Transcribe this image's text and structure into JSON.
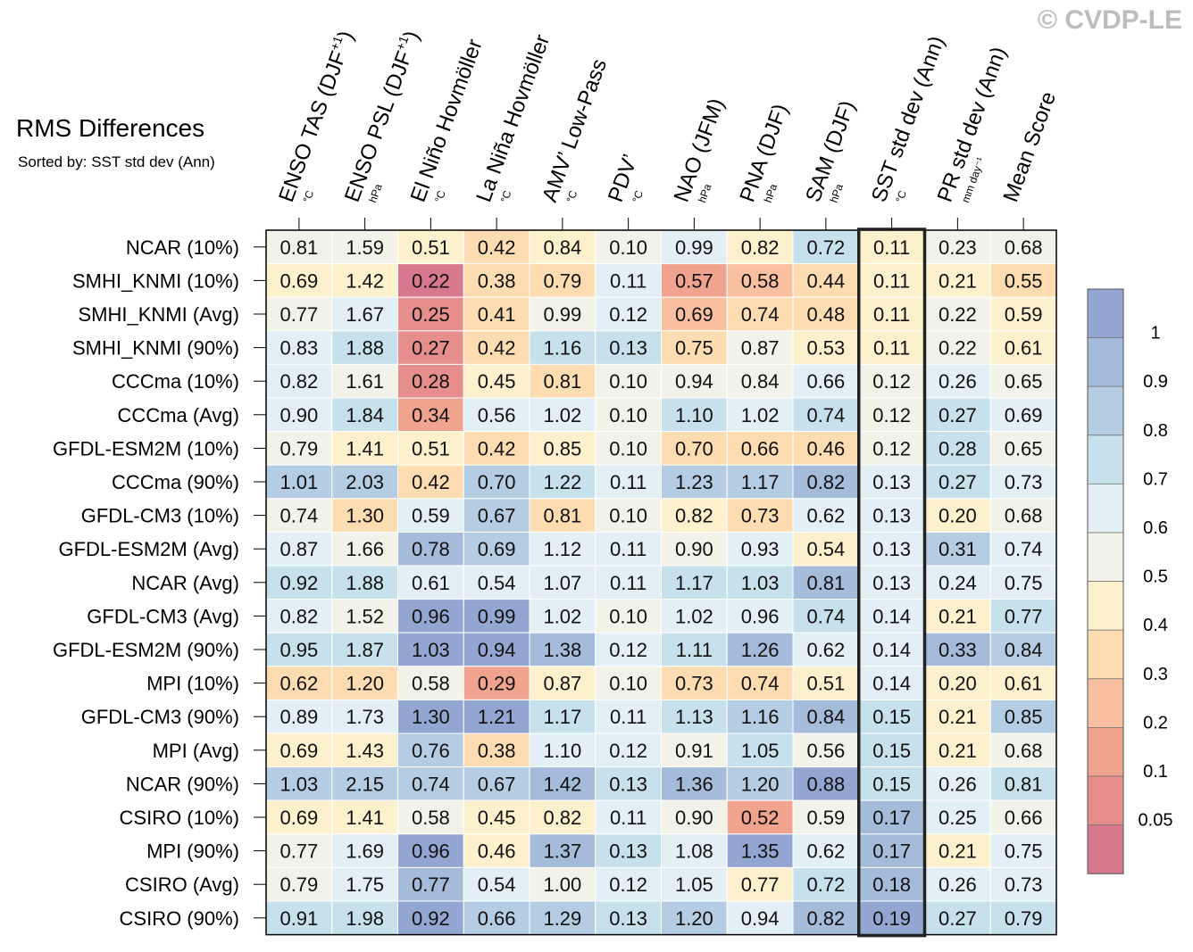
{
  "title": "RMS Differences",
  "subtitle": "Sorted by: SST std dev (Ann)",
  "copyright": "© CVDP-LE",
  "chart_data": {
    "type": "heatmap",
    "columns": [
      {
        "label": "ENSO TAS (DJF",
        "sup": "+1",
        "suffix": ")",
        "unit": "°C"
      },
      {
        "label": "ENSO PSL (DJF",
        "sup": "+1",
        "suffix": ")",
        "unit": "hPa"
      },
      {
        "label": "El Niño Hovmöller",
        "sup": "",
        "suffix": "",
        "unit": "°C"
      },
      {
        "label": "La Niña Hovmöller",
        "sup": "",
        "suffix": "",
        "unit": "°C"
      },
      {
        "label": "AMV’ Low-Pass",
        "sup": "",
        "suffix": "",
        "unit": "°C"
      },
      {
        "label": "PDV’",
        "sup": "",
        "suffix": "",
        "unit": "°C"
      },
      {
        "label": "NAO (JFM)",
        "sup": "",
        "suffix": "",
        "unit": "hPa"
      },
      {
        "label": "PNA (DJF)",
        "sup": "",
        "suffix": "",
        "unit": "hPa"
      },
      {
        "label": "SAM (DJF)",
        "sup": "",
        "suffix": "",
        "unit": "hPa"
      },
      {
        "label": "SST std dev (Ann)",
        "sup": "",
        "suffix": "",
        "unit": "°C"
      },
      {
        "label": "PR std dev (Ann)",
        "sup": "",
        "suffix": "",
        "unit": "mm day⁻¹"
      },
      {
        "label": "Mean Score",
        "sup": "",
        "suffix": "",
        "unit": ""
      }
    ],
    "rows": [
      {
        "name": "NCAR (10%)",
        "values": [
          0.81,
          1.59,
          0.51,
          0.42,
          0.84,
          0.1,
          0.99,
          0.82,
          0.72,
          0.11,
          0.23,
          0.68
        ]
      },
      {
        "name": "SMHI_KNMI (10%)",
        "values": [
          0.69,
          1.42,
          0.22,
          0.38,
          0.79,
          0.11,
          0.57,
          0.58,
          0.44,
          0.11,
          0.21,
          0.55
        ]
      },
      {
        "name": "SMHI_KNMI (Avg)",
        "values": [
          0.77,
          1.67,
          0.25,
          0.41,
          0.99,
          0.12,
          0.69,
          0.74,
          0.48,
          0.11,
          0.22,
          0.59
        ]
      },
      {
        "name": "SMHI_KNMI (90%)",
        "values": [
          0.83,
          1.88,
          0.27,
          0.42,
          1.16,
          0.13,
          0.75,
          0.87,
          0.53,
          0.11,
          0.22,
          0.61
        ]
      },
      {
        "name": "CCCma (10%)",
        "values": [
          0.82,
          1.61,
          0.28,
          0.45,
          0.81,
          0.1,
          0.94,
          0.84,
          0.66,
          0.12,
          0.26,
          0.65
        ]
      },
      {
        "name": "CCCma (Avg)",
        "values": [
          0.9,
          1.84,
          0.34,
          0.56,
          1.02,
          0.1,
          1.1,
          1.02,
          0.74,
          0.12,
          0.27,
          0.69
        ]
      },
      {
        "name": "GFDL-ESM2M (10%)",
        "values": [
          0.79,
          1.41,
          0.51,
          0.42,
          0.85,
          0.1,
          0.7,
          0.66,
          0.46,
          0.12,
          0.28,
          0.65
        ]
      },
      {
        "name": "CCCma (90%)",
        "values": [
          1.01,
          2.03,
          0.42,
          0.7,
          1.22,
          0.11,
          1.23,
          1.17,
          0.82,
          0.13,
          0.27,
          0.73
        ]
      },
      {
        "name": "GFDL-CM3 (10%)",
        "values": [
          0.74,
          1.3,
          0.59,
          0.67,
          0.81,
          0.1,
          0.82,
          0.73,
          0.62,
          0.13,
          0.2,
          0.68
        ]
      },
      {
        "name": "GFDL-ESM2M (Avg)",
        "values": [
          0.87,
          1.66,
          0.78,
          0.69,
          1.12,
          0.11,
          0.9,
          0.93,
          0.54,
          0.13,
          0.31,
          0.74
        ]
      },
      {
        "name": "NCAR (Avg)",
        "values": [
          0.92,
          1.88,
          0.61,
          0.54,
          1.07,
          0.11,
          1.17,
          1.03,
          0.81,
          0.13,
          0.24,
          0.75
        ]
      },
      {
        "name": "GFDL-CM3 (Avg)",
        "values": [
          0.82,
          1.52,
          0.96,
          0.99,
          1.02,
          0.1,
          1.02,
          0.96,
          0.74,
          0.14,
          0.21,
          0.77
        ]
      },
      {
        "name": "GFDL-ESM2M (90%)",
        "values": [
          0.95,
          1.87,
          1.03,
          0.94,
          1.38,
          0.12,
          1.11,
          1.26,
          0.62,
          0.14,
          0.33,
          0.84
        ]
      },
      {
        "name": "MPI (10%)",
        "values": [
          0.62,
          1.2,
          0.58,
          0.29,
          0.87,
          0.1,
          0.73,
          0.74,
          0.51,
          0.14,
          0.2,
          0.61
        ]
      },
      {
        "name": "GFDL-CM3 (90%)",
        "values": [
          0.89,
          1.73,
          1.3,
          1.21,
          1.17,
          0.11,
          1.13,
          1.16,
          0.84,
          0.15,
          0.21,
          0.85
        ]
      },
      {
        "name": "MPI (Avg)",
        "values": [
          0.69,
          1.43,
          0.76,
          0.38,
          1.1,
          0.12,
          0.91,
          1.05,
          0.56,
          0.15,
          0.21,
          0.68
        ]
      },
      {
        "name": "NCAR (90%)",
        "values": [
          1.03,
          2.15,
          0.74,
          0.67,
          1.42,
          0.13,
          1.36,
          1.2,
          0.88,
          0.15,
          0.26,
          0.81
        ]
      },
      {
        "name": "CSIRO (10%)",
        "values": [
          0.69,
          1.41,
          0.58,
          0.45,
          0.82,
          0.11,
          0.9,
          0.52,
          0.59,
          0.17,
          0.25,
          0.66
        ]
      },
      {
        "name": "MPI (90%)",
        "values": [
          0.77,
          1.69,
          0.96,
          0.46,
          1.37,
          0.13,
          1.08,
          1.35,
          0.62,
          0.17,
          0.21,
          0.75
        ]
      },
      {
        "name": "CSIRO (Avg)",
        "values": [
          0.79,
          1.75,
          0.77,
          0.54,
          1.0,
          0.12,
          1.05,
          0.77,
          0.72,
          0.18,
          0.26,
          0.73
        ]
      },
      {
        "name": "CSIRO (90%)",
        "values": [
          0.91,
          1.98,
          0.92,
          0.66,
          1.29,
          0.13,
          1.2,
          0.94,
          0.82,
          0.19,
          0.27,
          0.79
        ]
      }
    ],
    "highlight_column": "SST std dev (Ann)",
    "colorbar": {
      "labels": [
        "1",
        "0.9",
        "0.8",
        "0.7",
        "0.6",
        "0.5",
        "0.4",
        "0.3",
        "0.2",
        "0.1",
        "0.05"
      ],
      "colors": [
        "#93a6d2",
        "#a4bcda",
        "#b4cde3",
        "#c6e0ec",
        "#e2f0f5",
        "#f3f2e8",
        "#fdf0cd",
        "#fddcb1",
        "#f8c0a0",
        "#f0a38e",
        "#e58e8c",
        "#d8788d"
      ]
    }
  }
}
